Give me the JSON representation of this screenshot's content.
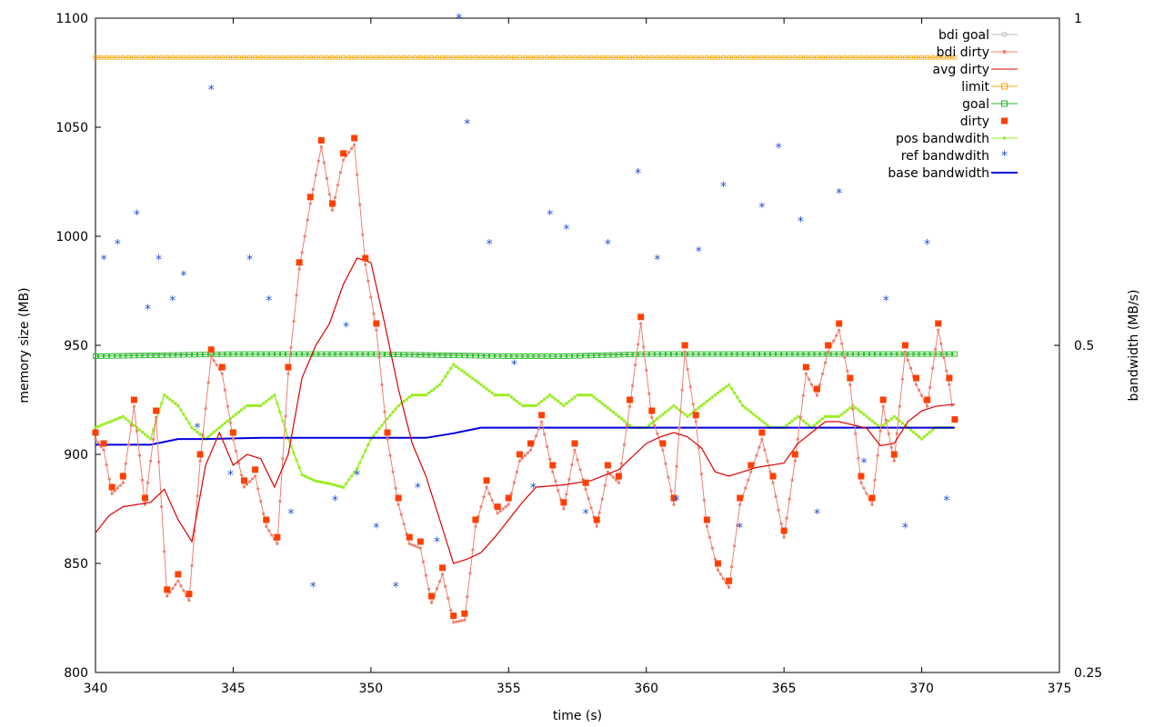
{
  "chart_data": {
    "type": "line",
    "xlabel": "time (s)",
    "ylabel": "memory size (MB)",
    "y2label": "bandwidth (MB/s)",
    "xlim": [
      340,
      375
    ],
    "ylim": [
      800,
      1100
    ],
    "y2lim": [
      0.25,
      1
    ],
    "y2scale": "log",
    "xticks": [
      "340",
      "345",
      "350",
      "355",
      "360",
      "365",
      "370",
      "375"
    ],
    "yticks": [
      "800",
      "850",
      "900",
      "950",
      "1000",
      "1050",
      "1100"
    ],
    "y2ticks": [
      "0.25",
      "0.5",
      "1"
    ],
    "grid": false,
    "legend_position": "top-right",
    "legend": [
      {
        "name": "bdi goal",
        "color": "#bbbbbb",
        "marker": "open-circle"
      },
      {
        "name": "bdi dirty",
        "color": "#f08070",
        "marker": "dot"
      },
      {
        "name": "avg dirty",
        "color": "#dd0000",
        "marker": "none"
      },
      {
        "name": "limit",
        "color": "#ffa500",
        "marker": "open-square"
      },
      {
        "name": "goal",
        "color": "#22bb22",
        "marker": "open-square"
      },
      {
        "name": "dirty",
        "color": "#ff4000",
        "marker": "filled-square"
      },
      {
        "name": "pos bandwdith",
        "color": "#99ee22",
        "marker": "small-square"
      },
      {
        "name": "ref bandwdith",
        "color": "#1f4fd8",
        "marker": "star"
      },
      {
        "name": "base bandwidth",
        "color": "#0000dd",
        "marker": "none"
      }
    ],
    "series": {
      "limit_mb": 1082,
      "bdi_goal_mb": 946,
      "goal_mb": {
        "x": [
          340,
          345,
          350,
          355,
          357,
          360,
          365,
          371.2
        ],
        "y": [
          945,
          946,
          946,
          945,
          945,
          946,
          946,
          946
        ]
      },
      "dirty_mb": {
        "x": [
          340,
          340.3,
          340.6,
          341,
          341.4,
          341.8,
          342.2,
          342.6,
          343,
          343.4,
          343.8,
          344.2,
          344.6,
          345,
          345.4,
          345.8,
          346.2,
          346.6,
          347,
          347.4,
          347.8,
          348.2,
          348.6,
          349,
          349.4,
          349.8,
          350.2,
          350.6,
          351,
          351.4,
          351.8,
          352.2,
          352.6,
          353,
          353.4,
          353.8,
          354.2,
          354.6,
          355,
          355.4,
          355.8,
          356.2,
          356.6,
          357,
          357.4,
          357.8,
          358.2,
          358.6,
          359,
          359.4,
          359.8,
          360.2,
          360.6,
          361,
          361.4,
          361.8,
          362.2,
          362.6,
          363,
          363.4,
          363.8,
          364.2,
          364.6,
          365,
          365.4,
          365.8,
          366.2,
          366.6,
          367,
          367.4,
          367.8,
          368.2,
          368.6,
          369,
          369.4,
          369.8,
          370.2,
          370.6,
          371,
          371.2
        ],
        "y": [
          910,
          905,
          885,
          890,
          925,
          880,
          920,
          838,
          845,
          836,
          900,
          948,
          940,
          910,
          888,
          893,
          870,
          862,
          940,
          988,
          1018,
          1044,
          1015,
          1038,
          1045,
          990,
          960,
          910,
          880,
          862,
          860,
          835,
          848,
          826,
          827,
          870,
          888,
          876,
          880,
          900,
          905,
          918,
          895,
          878,
          905,
          887,
          870,
          895,
          890,
          925,
          963,
          920,
          905,
          880,
          950,
          918,
          870,
          850,
          842,
          880,
          895,
          910,
          890,
          865,
          900,
          940,
          930,
          950,
          960,
          935,
          890,
          880,
          925,
          900,
          950,
          935,
          925,
          960,
          935,
          916
        ]
      },
      "avg_dirty_mb": {
        "x": [
          340,
          340.5,
          341,
          342,
          342.5,
          343,
          343.5,
          344,
          344.5,
          345,
          345.5,
          346,
          346.5,
          347,
          347.5,
          348,
          348.5,
          349,
          349.5,
          350,
          350.5,
          351,
          351.5,
          352,
          352.5,
          353,
          353.5,
          354,
          354.5,
          355,
          355.5,
          356,
          357,
          358,
          359,
          360,
          360.5,
          361,
          361.5,
          362,
          362.5,
          363,
          363.5,
          364,
          365,
          365.5,
          366,
          366.5,
          367,
          368,
          368.5,
          369,
          369.5,
          370,
          370.5,
          371.2
        ],
        "y": [
          864,
          872,
          876,
          878,
          884,
          870,
          860,
          895,
          910,
          895,
          900,
          898,
          885,
          900,
          935,
          950,
          960,
          978,
          990,
          988,
          960,
          930,
          905,
          890,
          870,
          850,
          852,
          855,
          862,
          870,
          878,
          885,
          886,
          888,
          893,
          905,
          908,
          910,
          908,
          903,
          892,
          890,
          892,
          894,
          896,
          905,
          910,
          915,
          915,
          912,
          904,
          905,
          915,
          920,
          922,
          923
        ]
      },
      "pos_bandwidth_mbps": {
        "x": [
          340,
          341,
          342,
          342.5,
          343,
          343.5,
          344,
          344.5,
          345,
          345.5,
          346,
          346.5,
          347,
          347.5,
          348,
          348.5,
          349,
          349.5,
          350,
          350.5,
          351,
          351.5,
          352,
          352.5,
          353,
          353.5,
          354,
          354.5,
          355,
          355.5,
          356,
          356.5,
          357,
          357.5,
          358,
          358.5,
          359,
          359.5,
          360,
          360.5,
          361,
          361.5,
          362,
          362.5,
          363,
          363.5,
          364,
          364.5,
          365,
          365.5,
          366,
          366.5,
          367,
          367.5,
          368,
          368.5,
          369,
          369.5,
          370,
          370.5,
          371.2
        ],
        "y": [
          0.42,
          0.43,
          0.41,
          0.45,
          0.44,
          0.42,
          0.41,
          0.42,
          0.43,
          0.44,
          0.44,
          0.45,
          0.41,
          0.38,
          0.375,
          0.373,
          0.37,
          0.385,
          0.41,
          0.425,
          0.44,
          0.45,
          0.45,
          0.46,
          0.48,
          0.47,
          0.46,
          0.45,
          0.45,
          0.44,
          0.44,
          0.45,
          0.44,
          0.45,
          0.45,
          0.44,
          0.43,
          0.42,
          0.42,
          0.43,
          0.44,
          0.43,
          0.44,
          0.45,
          0.46,
          0.44,
          0.43,
          0.42,
          0.42,
          0.43,
          0.42,
          0.43,
          0.43,
          0.44,
          0.43,
          0.42,
          0.43,
          0.42,
          0.41,
          0.42,
          0.42
        ]
      },
      "base_bandwidth_mbps": {
        "x": [
          340,
          342,
          343,
          344,
          346,
          348,
          350,
          352,
          353,
          354,
          356,
          358,
          360,
          362,
          364,
          366,
          368,
          370,
          371.2
        ],
        "y": [
          0.405,
          0.405,
          0.41,
          0.41,
          0.411,
          0.411,
          0.411,
          0.411,
          0.415,
          0.42,
          0.42,
          0.42,
          0.42,
          0.42,
          0.42,
          0.42,
          0.42,
          0.42,
          0.42
        ]
      },
      "ref_bandwidth_mbps": {
        "x": [
          340.3,
          340.8,
          341.5,
          341.9,
          342.3,
          342.8,
          343.2,
          343.7,
          344.2,
          344.9,
          345.6,
          346.3,
          347.1,
          347.9,
          348.7,
          349.1,
          349.5,
          350.2,
          350.9,
          351.7,
          352.4,
          353.2,
          353.5,
          354.3,
          355.2,
          355.9,
          356.5,
          357.1,
          357.8,
          358.6,
          359.7,
          360.4,
          361.1,
          361.9,
          362.8,
          363.4,
          364.2,
          364.8,
          365.6,
          366.2,
          367,
          367.9,
          368.7,
          369.4,
          370.2,
          370.9
        ],
        "y": [
          0.6,
          0.62,
          0.66,
          0.54,
          0.6,
          0.55,
          0.58,
          0.42,
          0.86,
          0.38,
          0.6,
          0.55,
          0.35,
          0.3,
          0.36,
          0.52,
          0.38,
          0.34,
          0.3,
          0.37,
          0.33,
          1.0,
          0.8,
          0.62,
          0.48,
          0.37,
          0.66,
          0.64,
          0.35,
          0.62,
          0.72,
          0.6,
          0.36,
          0.61,
          0.7,
          0.34,
          0.67,
          0.76,
          0.65,
          0.35,
          0.69,
          0.39,
          0.55,
          0.34,
          0.62,
          0.36
        ]
      }
    }
  }
}
